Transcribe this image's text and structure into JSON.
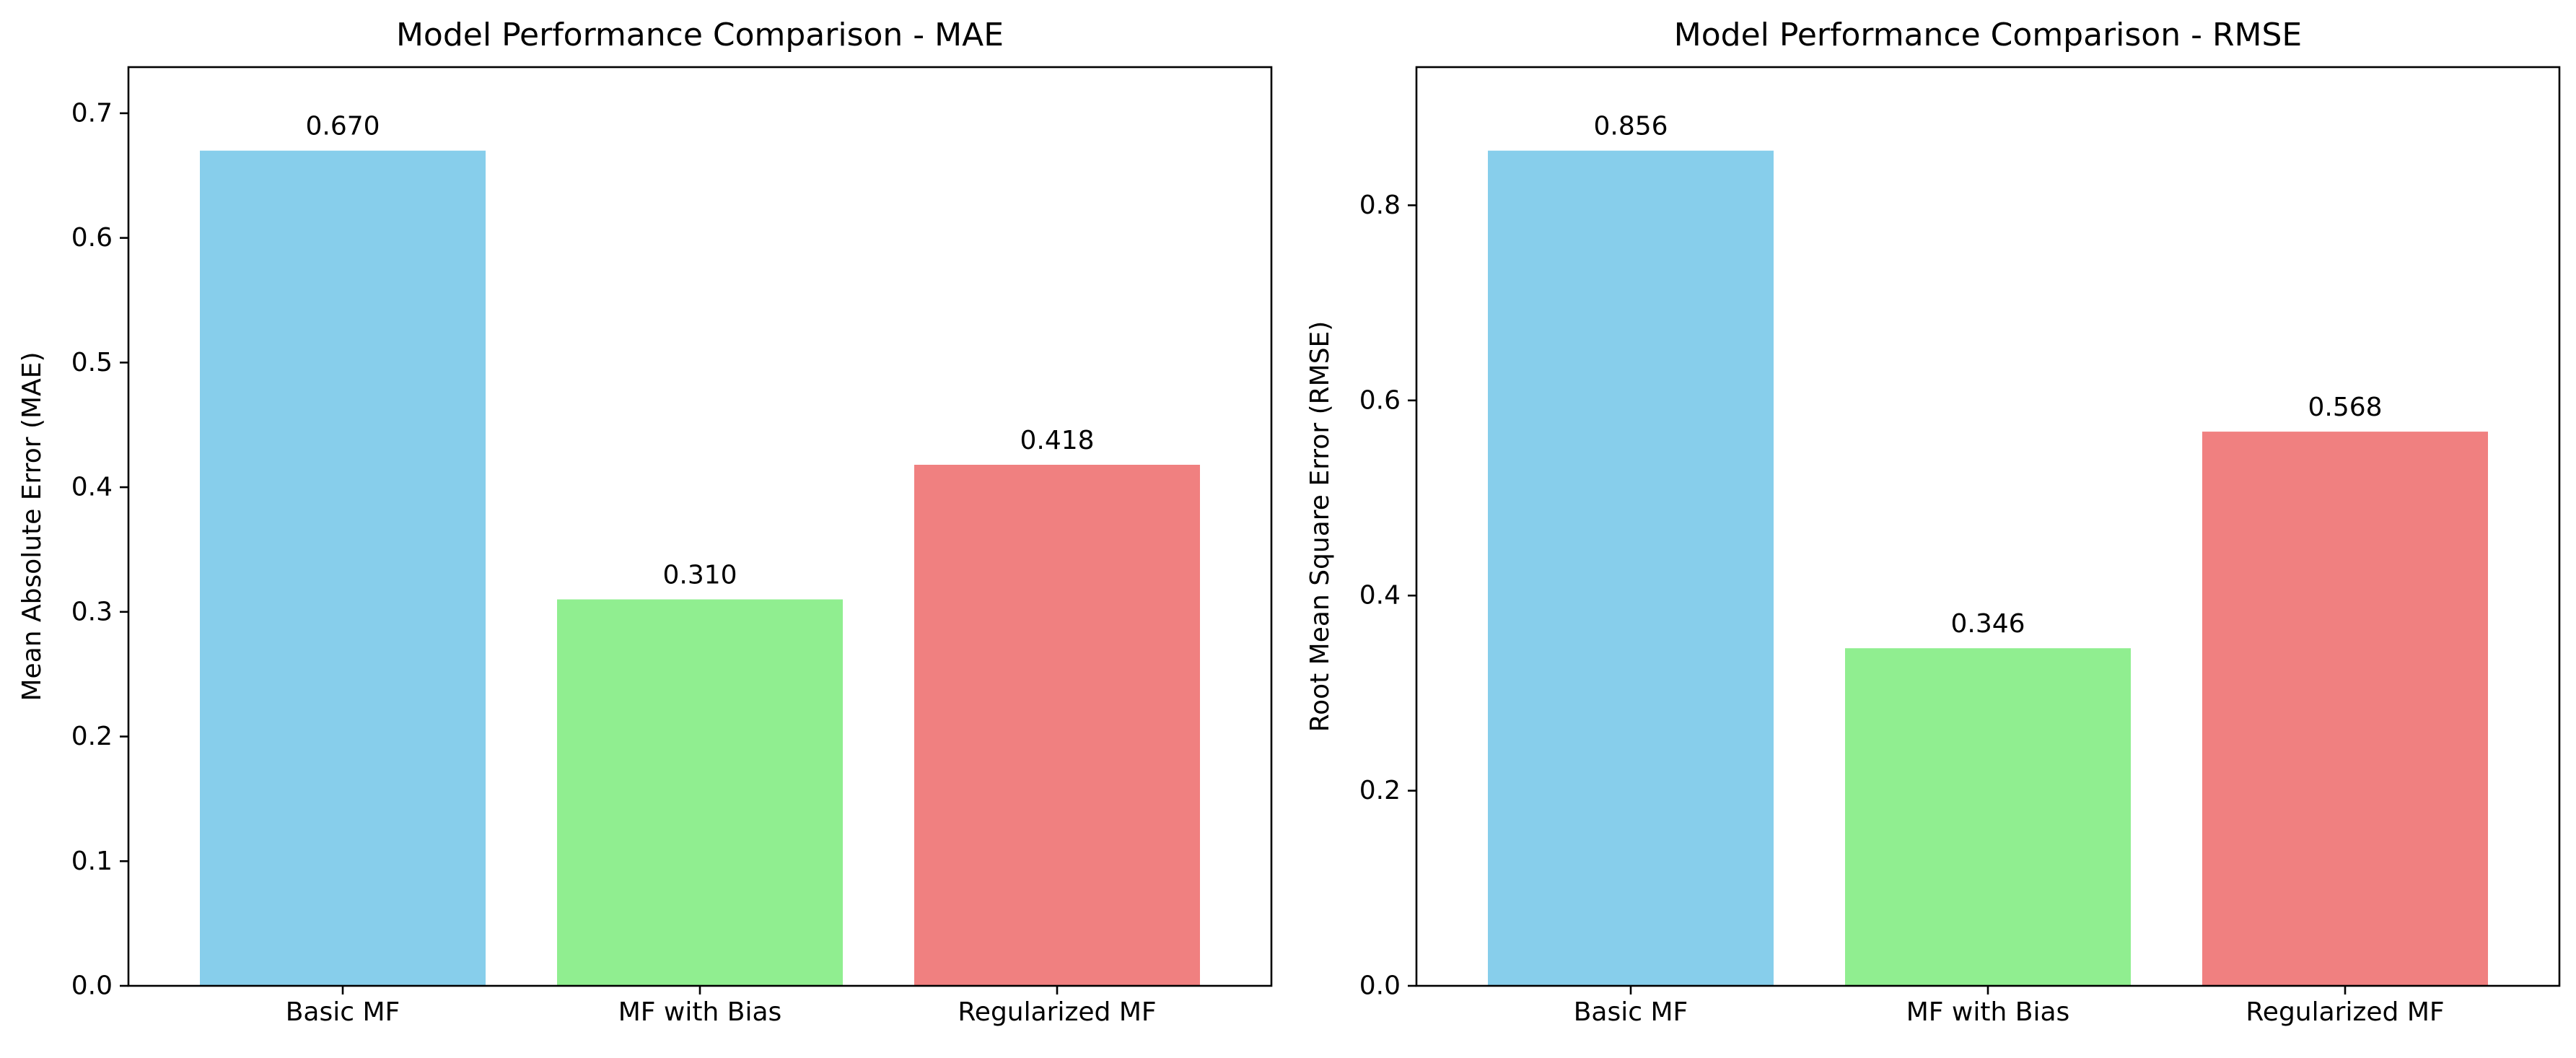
{
  "chart_data": [
    {
      "type": "bar",
      "title": "Model Performance Comparison - MAE",
      "xlabel": "",
      "ylabel": "Mean Absolute Error (MAE)",
      "categories": [
        "Basic MF",
        "MF with Bias",
        "Regularized MF"
      ],
      "values": [
        0.67,
        0.31,
        0.418
      ],
      "value_labels": [
        "0.670",
        "0.310",
        "0.418"
      ],
      "colors": [
        "#87ceeb",
        "#90ee90",
        "#f08080"
      ],
      "ylim": [
        0,
        0.737
      ],
      "yticks": [
        0.0,
        0.1,
        0.2,
        0.3,
        0.4,
        0.5,
        0.6,
        0.7
      ],
      "ytick_labels": [
        "0.0",
        "0.1",
        "0.2",
        "0.3",
        "0.4",
        "0.5",
        "0.6",
        "0.7"
      ],
      "grid": false,
      "legend": "none"
    },
    {
      "type": "bar",
      "title": "Model Performance Comparison - RMSE",
      "xlabel": "",
      "ylabel": "Root Mean Square Error (RMSE)",
      "categories": [
        "Basic MF",
        "MF with Bias",
        "Regularized MF"
      ],
      "values": [
        0.856,
        0.346,
        0.568
      ],
      "value_labels": [
        "0.856",
        "0.346",
        "0.568"
      ],
      "colors": [
        "#87ceeb",
        "#90ee90",
        "#f08080"
      ],
      "ylim": [
        0,
        0.9416
      ],
      "yticks": [
        0.0,
        0.2,
        0.4,
        0.6,
        0.8
      ],
      "ytick_labels": [
        "0.0",
        "0.2",
        "0.4",
        "0.6",
        "0.8"
      ],
      "grid": false,
      "legend": "none"
    }
  ]
}
